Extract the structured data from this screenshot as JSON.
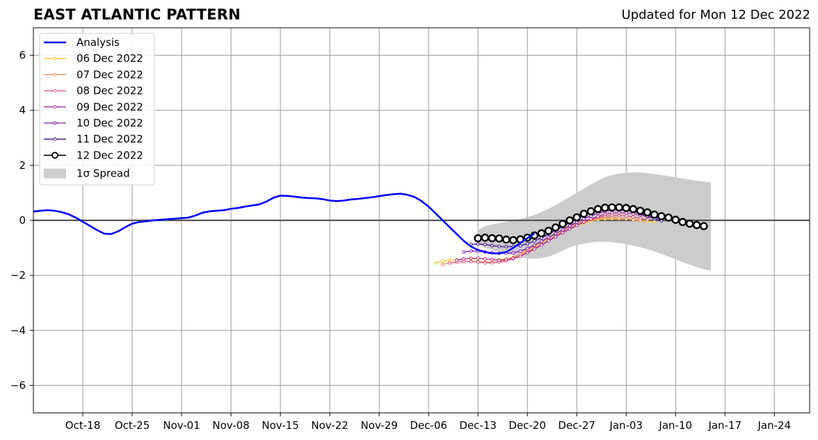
{
  "title": "EAST ATLANTIC PATTERN",
  "subtitle": "Updated for Mon 12 Dec 2022",
  "colors": {
    "analysis": "#0000ff",
    "spread": "#cccccc",
    "grid": "#999999",
    "zero_line": "#555555"
  },
  "chart_data": {
    "type": "line",
    "title": "EAST ATLANTIC PATTERN",
    "xlabel": "",
    "ylabel": "",
    "x_axis": {
      "start": "2022-10-11",
      "end": "2023-01-29",
      "tick_dates": [
        "2022-10-18",
        "2022-10-25",
        "2022-11-01",
        "2022-11-08",
        "2022-11-15",
        "2022-11-22",
        "2022-11-29",
        "2022-12-06",
        "2022-12-13",
        "2022-12-20",
        "2022-12-27",
        "2023-01-03",
        "2023-01-10",
        "2023-01-17",
        "2023-01-24"
      ],
      "tick_labels": [
        "Oct-18",
        "Oct-25",
        "Nov-01",
        "Nov-08",
        "Nov-15",
        "Nov-22",
        "Nov-29",
        "Dec-06",
        "Dec-13",
        "Dec-20",
        "Dec-27",
        "Jan-03",
        "Jan-10",
        "Jan-17",
        "Jan-24"
      ]
    },
    "y_axis": {
      "ylim": [
        -7,
        7
      ],
      "ticks": [
        -6,
        -4,
        -2,
        0,
        2,
        4,
        6
      ],
      "tick_labels": [
        "−6",
        "−4",
        "−2",
        "0",
        "2",
        "4",
        "6"
      ]
    },
    "grid": true,
    "legend_position": "top-left",
    "legend": [
      "Analysis",
      "06 Dec 2022",
      "07 Dec 2022",
      "08 Dec 2022",
      "09 Dec 2022",
      "10 Dec 2022",
      "11 Dec 2022",
      "12 Dec 2022",
      "1σ Spread"
    ],
    "analysis": {
      "name": "Analysis",
      "start": "2022-10-11",
      "values": [
        0.32,
        0.35,
        0.37,
        0.35,
        0.3,
        0.22,
        0.1,
        -0.05,
        -0.2,
        -0.35,
        -0.48,
        -0.5,
        -0.4,
        -0.25,
        -0.12,
        -0.06,
        -0.03,
        0.0,
        0.02,
        0.04,
        0.06,
        0.08,
        0.1,
        0.18,
        0.28,
        0.33,
        0.35,
        0.37,
        0.42,
        0.45,
        0.5,
        0.54,
        0.58,
        0.68,
        0.82,
        0.9,
        0.89,
        0.86,
        0.83,
        0.81,
        0.8,
        0.77,
        0.72,
        0.7,
        0.72,
        0.76,
        0.78,
        0.81,
        0.84,
        0.88,
        0.92,
        0.95,
        0.97,
        0.93,
        0.85,
        0.7,
        0.5,
        0.25,
        0.0,
        -0.25,
        -0.5,
        -0.75,
        -0.95,
        -1.08,
        -1.15,
        -1.2,
        -1.2,
        -1.15,
        -1.0,
        -0.82,
        -0.65,
        -0.48
      ]
    },
    "forecasts": [
      {
        "name": "06 Dec 2022",
        "color": "#ffc125",
        "start": "2022-12-07",
        "values": [
          -1.55,
          -1.48,
          -1.45,
          -1.43,
          -1.4,
          -1.4,
          -1.4,
          -1.4,
          -1.42,
          -1.42,
          -1.4,
          -1.35,
          -1.25,
          -1.1,
          -0.95,
          -0.8,
          -0.65,
          -0.52,
          -0.4,
          -0.28,
          -0.18,
          -0.1,
          -0.02,
          0.03,
          0.05,
          0.06,
          0.06,
          0.05,
          0.03,
          0.0,
          -0.03,
          -0.05
        ]
      },
      {
        "name": "07 Dec 2022",
        "color": "#f4834a",
        "start": "2022-12-08",
        "values": [
          -1.6,
          -1.55,
          -1.52,
          -1.5,
          -1.5,
          -1.5,
          -1.52,
          -1.52,
          -1.5,
          -1.45,
          -1.35,
          -1.22,
          -1.08,
          -0.92,
          -0.78,
          -0.62,
          -0.48,
          -0.35,
          -0.22,
          -0.12,
          -0.03,
          0.04,
          0.08,
          0.1,
          0.1,
          0.08,
          0.05,
          0.01,
          -0.02
        ]
      },
      {
        "name": "08 Dec 2022",
        "color": "#e0567b",
        "start": "2022-12-09",
        "values": [
          -1.55,
          -1.52,
          -1.5,
          -1.5,
          -1.52,
          -1.55,
          -1.55,
          -1.52,
          -1.48,
          -1.4,
          -1.3,
          -1.15,
          -1.02,
          -0.88,
          -0.72,
          -0.57,
          -0.42,
          -0.3,
          -0.18,
          -0.07,
          0.02,
          0.1,
          0.15,
          0.18,
          0.18,
          0.16,
          0.12,
          0.07,
          0.02
        ]
      },
      {
        "name": "09 Dec 2022",
        "color": "#b02c92",
        "start": "2022-12-10",
        "values": [
          -1.45,
          -1.4,
          -1.38,
          -1.38,
          -1.4,
          -1.42,
          -1.45,
          -1.42,
          -1.38,
          -1.3,
          -1.18,
          -1.05,
          -0.9,
          -0.75,
          -0.6,
          -0.45,
          -0.32,
          -0.18,
          -0.06,
          0.05,
          0.14,
          0.22,
          0.27,
          0.28,
          0.27,
          0.24,
          0.19,
          0.13,
          0.06
        ]
      },
      {
        "name": "10 Dec 2022",
        "color": "#7a17b0",
        "start": "2022-12-11",
        "values": [
          -1.15,
          -1.12,
          -1.12,
          -1.15,
          -1.18,
          -1.2,
          -1.2,
          -1.18,
          -1.12,
          -1.02,
          -0.9,
          -0.76,
          -0.62,
          -0.48,
          -0.34,
          -0.2,
          -0.07,
          0.06,
          0.16,
          0.26,
          0.33,
          0.37,
          0.38,
          0.36,
          0.32,
          0.26,
          0.19,
          0.11,
          0.04
        ]
      },
      {
        "name": "11 Dec 2022",
        "color": "#3d0b8c",
        "start": "2022-12-12",
        "values": [
          -0.88,
          -0.86,
          -0.88,
          -0.92,
          -0.95,
          -0.96,
          -0.95,
          -0.92,
          -0.85,
          -0.75,
          -0.64,
          -0.5,
          -0.36,
          -0.22,
          -0.08,
          0.06,
          0.18,
          0.28,
          0.36,
          0.41,
          0.43,
          0.42,
          0.38,
          0.32,
          0.24,
          0.15,
          0.06,
          -0.02
        ]
      },
      {
        "name": "12 Dec 2022",
        "color": "#000000",
        "start": "2022-12-13",
        "values": [
          -0.65,
          -0.63,
          -0.65,
          -0.66,
          -0.7,
          -0.72,
          -0.69,
          -0.63,
          -0.55,
          -0.47,
          -0.38,
          -0.26,
          -0.13,
          0.0,
          0.11,
          0.24,
          0.33,
          0.41,
          0.46,
          0.47,
          0.47,
          0.45,
          0.41,
          0.35,
          0.29,
          0.21,
          0.15,
          0.1,
          0.02,
          -0.06,
          -0.12,
          -0.17,
          -0.21
        ]
      }
    ],
    "spread": {
      "name": "1σ Spread",
      "start": "2022-12-13",
      "upper": [
        -0.35,
        -0.22,
        -0.15,
        -0.1,
        -0.05,
        0.0,
        0.05,
        0.12,
        0.2,
        0.3,
        0.42,
        0.55,
        0.7,
        0.85,
        1.0,
        1.15,
        1.3,
        1.45,
        1.57,
        1.65,
        1.7,
        1.73,
        1.74,
        1.74,
        1.72,
        1.69,
        1.65,
        1.61,
        1.56,
        1.52,
        1.48,
        1.44,
        1.41,
        1.38
      ],
      "lower": [
        -0.88,
        -1.0,
        -1.08,
        -1.15,
        -1.22,
        -1.28,
        -1.34,
        -1.38,
        -1.4,
        -1.38,
        -1.32,
        -1.22,
        -1.1,
        -0.98,
        -0.9,
        -0.85,
        -0.8,
        -0.78,
        -0.78,
        -0.8,
        -0.83,
        -0.87,
        -0.92,
        -0.98,
        -1.05,
        -1.13,
        -1.22,
        -1.32,
        -1.42,
        -1.52,
        -1.61,
        -1.7,
        -1.78,
        -1.83
      ]
    }
  }
}
